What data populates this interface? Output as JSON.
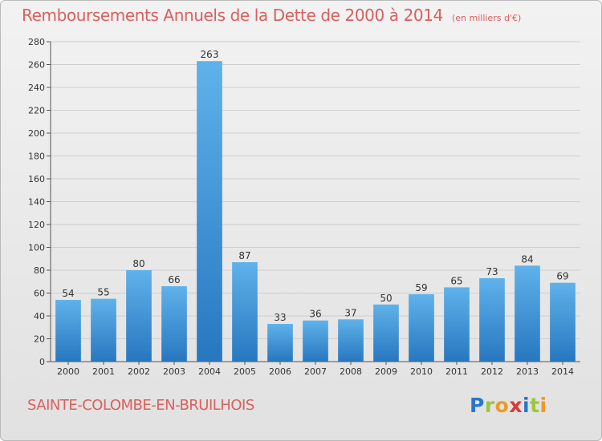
{
  "title": "Remboursements Annuels de la Dette de 2000 à 2014",
  "subtitle": "(en milliers d'€)",
  "commune": "SAINTE-COLOMBE-EN-BRUILHOIS",
  "logo_text": "Proxiti",
  "colors": {
    "title": "#d9605d",
    "bar_top": "#5fb2ea",
    "bar_bottom": "#2777c0",
    "grid": "#cfcfcf"
  },
  "chart_data": {
    "type": "bar",
    "categories": [
      "2000",
      "2001",
      "2002",
      "2003",
      "2004",
      "2005",
      "2006",
      "2007",
      "2008",
      "2009",
      "2010",
      "2011",
      "2012",
      "2013",
      "2014"
    ],
    "values": [
      54,
      55,
      80,
      66,
      263,
      87,
      33,
      36,
      37,
      50,
      59,
      65,
      73,
      84,
      69
    ],
    "ylim": [
      0,
      280
    ],
    "yticks": [
      0,
      20,
      40,
      60,
      80,
      100,
      120,
      140,
      160,
      180,
      200,
      220,
      240,
      260,
      280
    ],
    "grid": true
  }
}
